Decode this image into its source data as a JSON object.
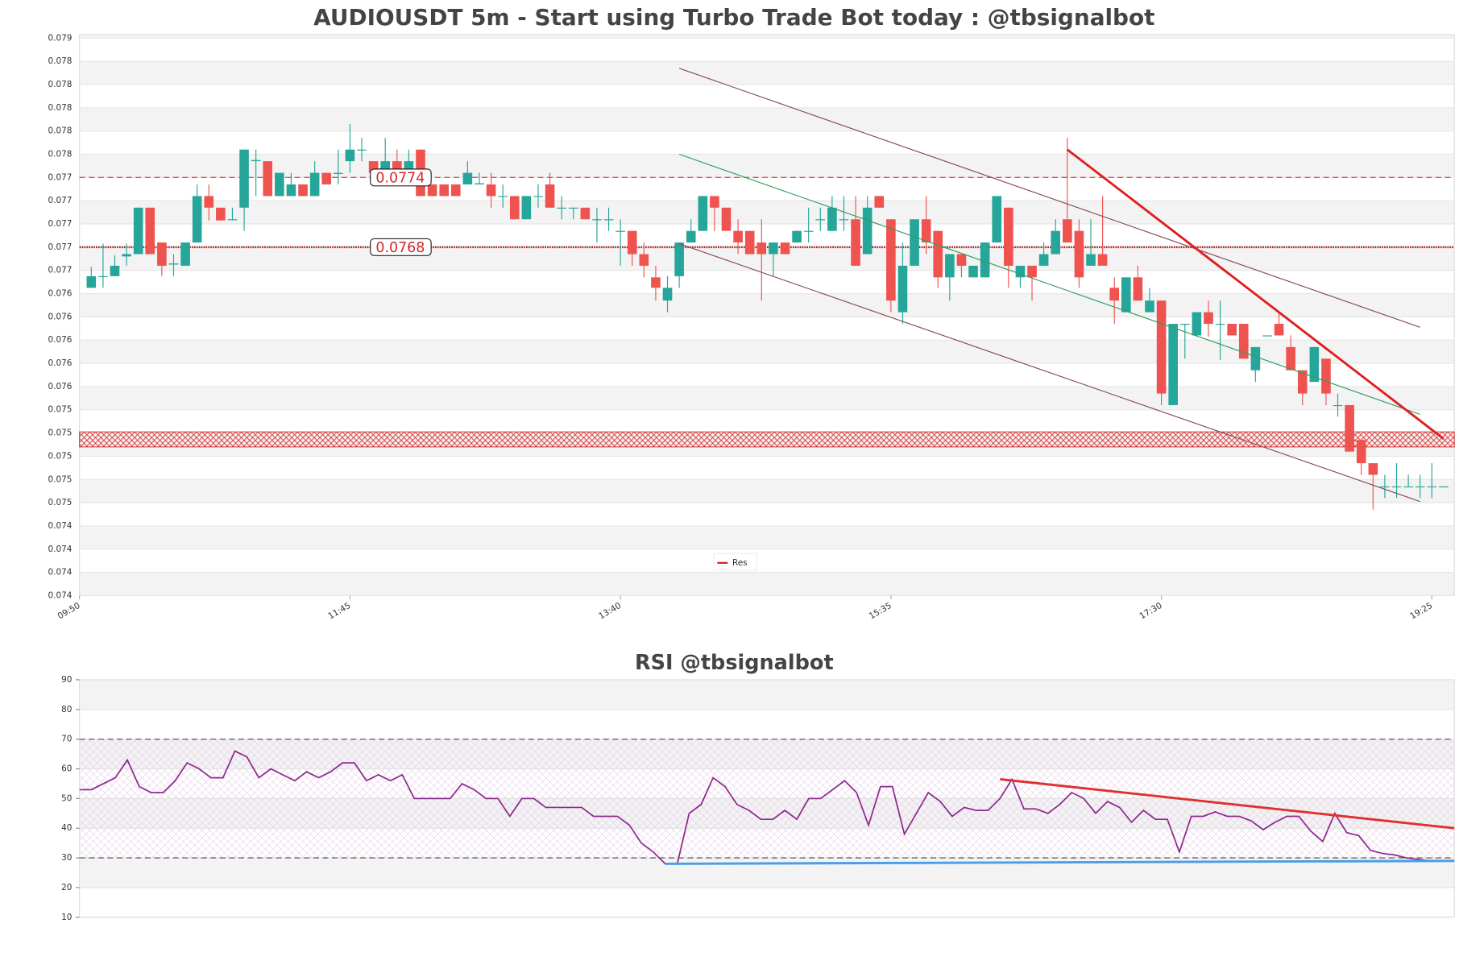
{
  "chart_data": [
    {
      "type": "candlestick",
      "title": "AUDIOUSDT 5m - Start using Turbo Trade Bot today : @tbsignalbot",
      "categories": [
        "09:50",
        null,
        null,
        null,
        null,
        null,
        null,
        null,
        null,
        null,
        null,
        null,
        null,
        null,
        null,
        null,
        null,
        null,
        null,
        null,
        null,
        null,
        null,
        "11:45",
        null,
        null,
        null,
        null,
        null,
        null,
        null,
        null,
        null,
        null,
        null,
        null,
        null,
        null,
        null,
        null,
        null,
        null,
        null,
        null,
        null,
        null,
        "13:40",
        null,
        null,
        null,
        null,
        null,
        null,
        null,
        null,
        null,
        null,
        null,
        null,
        null,
        null,
        null,
        null,
        null,
        null,
        null,
        null,
        null,
        null,
        "15:35",
        null,
        null,
        null,
        null,
        null,
        null,
        null,
        null,
        null,
        null,
        null,
        null,
        null,
        null,
        null,
        null,
        null,
        null,
        null,
        null,
        null,
        null,
        "17:30",
        null,
        null,
        null,
        null,
        null,
        null,
        null,
        null,
        null,
        null,
        null,
        null,
        null,
        null,
        null,
        null,
        null,
        null,
        null,
        null,
        null,
        null,
        "19:25"
      ],
      "open": [
        0.07645,
        0.07655,
        0.07655,
        0.07672,
        0.07674,
        0.07714,
        0.07684,
        0.07665,
        0.07664,
        0.07684,
        0.07724,
        0.07714,
        0.07704,
        0.07714,
        0.07754,
        0.07754,
        0.07724,
        0.07724,
        0.07734,
        0.07724,
        0.07744,
        0.07743,
        0.07754,
        0.07764,
        0.07754,
        0.07744,
        0.07754,
        0.07744,
        0.07764,
        0.07734,
        0.07734,
        0.07734,
        0.07734,
        0.07734,
        0.07734,
        0.07724,
        0.07724,
        0.07704,
        0.07724,
        0.07734,
        0.07714,
        0.07714,
        0.07714,
        0.07704,
        0.07704,
        0.07694,
        0.07694,
        0.07674,
        0.07654,
        0.07634,
        0.07655,
        0.07684,
        0.07694,
        0.07724,
        0.07714,
        0.07694,
        0.07694,
        0.07684,
        0.07674,
        0.07684,
        0.07684,
        0.07694,
        0.07704,
        0.07694,
        0.07704,
        0.07704,
        0.07674,
        0.07724,
        0.07704,
        0.07624,
        0.07664,
        0.07704,
        0.07694,
        0.07654,
        0.07674,
        0.07654,
        0.07654,
        0.07684,
        0.07714,
        0.07654,
        0.07664,
        0.07664,
        0.07674,
        0.07704,
        0.07694,
        0.07664,
        0.07674,
        0.07645,
        0.07624,
        0.07654,
        0.07624,
        0.07634,
        0.07544,
        0.07614,
        0.07604,
        0.07624,
        0.07614,
        0.07614,
        0.07614,
        0.07574,
        0.07604,
        0.07614,
        0.07594,
        0.07574,
        0.07564,
        0.07584,
        0.07544,
        0.07544,
        0.07514,
        0.07494,
        0.07474,
        0.07474,
        0.07474,
        0.07474,
        0.07474,
        0.07474
      ],
      "high": [
        0.07663,
        0.07683,
        0.07673,
        0.07683,
        0.07714,
        0.07714,
        0.07684,
        0.07674,
        0.07684,
        0.07734,
        0.07734,
        0.07714,
        0.07714,
        0.07764,
        0.07764,
        0.07754,
        0.07744,
        0.07744,
        0.07734,
        0.07754,
        0.07744,
        0.07764,
        0.07786,
        0.07774,
        0.07754,
        0.07774,
        0.07764,
        0.07764,
        0.07764,
        0.07734,
        0.07734,
        0.07734,
        0.07754,
        0.07744,
        0.07744,
        0.07734,
        0.07724,
        0.07724,
        0.07734,
        0.07744,
        0.07724,
        0.07714,
        0.07714,
        0.07714,
        0.07714,
        0.07704,
        0.07694,
        0.07684,
        0.07664,
        0.07655,
        0.07684,
        0.07704,
        0.07724,
        0.07724,
        0.07714,
        0.07704,
        0.07694,
        0.07704,
        0.07684,
        0.07684,
        0.07694,
        0.07714,
        0.07714,
        0.07724,
        0.07724,
        0.07724,
        0.07724,
        0.07724,
        0.07704,
        0.07684,
        0.07704,
        0.07724,
        0.07694,
        0.07674,
        0.07674,
        0.07664,
        0.07684,
        0.07724,
        0.07714,
        0.07664,
        0.07664,
        0.07684,
        0.07704,
        0.07774,
        0.07704,
        0.07704,
        0.07724,
        0.07654,
        0.07654,
        0.07664,
        0.07645,
        0.07634,
        0.07614,
        0.07614,
        0.07624,
        0.07634,
        0.07634,
        0.07614,
        0.07614,
        0.07594,
        0.07604,
        0.07624,
        0.07604,
        0.07574,
        0.07594,
        0.07584,
        0.07554,
        0.07544,
        0.07514,
        0.07494,
        0.07484,
        0.07494,
        0.07484,
        0.07484,
        0.07494,
        0.07474
      ],
      "low": [
        0.07645,
        0.07645,
        0.07655,
        0.07664,
        0.07674,
        0.07674,
        0.07655,
        0.07655,
        0.07664,
        0.07684,
        0.07703,
        0.07703,
        0.07703,
        0.07694,
        0.07724,
        0.07724,
        0.07724,
        0.07724,
        0.07724,
        0.07724,
        0.07734,
        0.07734,
        0.07744,
        0.07754,
        0.07744,
        0.07734,
        0.07744,
        0.07744,
        0.07724,
        0.07724,
        0.07724,
        0.07724,
        0.07734,
        0.07734,
        0.07714,
        0.07714,
        0.07704,
        0.07704,
        0.07714,
        0.07714,
        0.07704,
        0.07704,
        0.07704,
        0.07684,
        0.07694,
        0.07664,
        0.07664,
        0.07654,
        0.07634,
        0.07624,
        0.07645,
        0.07684,
        0.07694,
        0.07694,
        0.07694,
        0.07674,
        0.07674,
        0.07634,
        0.07655,
        0.07674,
        0.07684,
        0.07684,
        0.07694,
        0.07694,
        0.07694,
        0.07664,
        0.07674,
        0.07714,
        0.07624,
        0.07614,
        0.07664,
        0.07674,
        0.07645,
        0.07634,
        0.07654,
        0.07654,
        0.07654,
        0.07684,
        0.07645,
        0.07645,
        0.07634,
        0.07664,
        0.07674,
        0.07684,
        0.07645,
        0.07664,
        0.07664,
        0.07614,
        0.07624,
        0.07634,
        0.07624,
        0.07544,
        0.07544,
        0.07584,
        0.07603,
        0.07603,
        0.07583,
        0.07604,
        0.07584,
        0.07564,
        0.07604,
        0.07604,
        0.07574,
        0.07544,
        0.07564,
        0.07544,
        0.07534,
        0.07504,
        0.07484,
        0.07454,
        0.07464,
        0.07464,
        0.07474,
        0.07464,
        0.07464,
        0.07474
      ],
      "close": [
        0.07655,
        0.07655,
        0.07664,
        0.07674,
        0.07714,
        0.07674,
        0.07664,
        0.07666,
        0.07684,
        0.07724,
        0.07714,
        0.07703,
        0.07704,
        0.07764,
        0.07755,
        0.07724,
        0.07744,
        0.07734,
        0.07724,
        0.07744,
        0.07734,
        0.07744,
        0.07764,
        0.07764,
        0.07744,
        0.07754,
        0.07744,
        0.07754,
        0.07724,
        0.07724,
        0.07724,
        0.07724,
        0.07744,
        0.07735,
        0.07724,
        0.07724,
        0.07704,
        0.07724,
        0.07724,
        0.07714,
        0.07714,
        0.07714,
        0.07704,
        0.07704,
        0.07704,
        0.07694,
        0.07674,
        0.07664,
        0.07645,
        0.07645,
        0.07684,
        0.07694,
        0.07724,
        0.07714,
        0.07694,
        0.07684,
        0.07674,
        0.07674,
        0.07684,
        0.07674,
        0.07694,
        0.07694,
        0.07704,
        0.07714,
        0.07704,
        0.07664,
        0.07714,
        0.07714,
        0.07634,
        0.07664,
        0.07704,
        0.07684,
        0.07654,
        0.07674,
        0.07664,
        0.07664,
        0.07684,
        0.07724,
        0.07664,
        0.07664,
        0.07654,
        0.07674,
        0.07694,
        0.07684,
        0.07654,
        0.07674,
        0.07664,
        0.07634,
        0.07654,
        0.07634,
        0.07634,
        0.07554,
        0.07614,
        0.07614,
        0.07624,
        0.07614,
        0.07614,
        0.07604,
        0.07584,
        0.07594,
        0.07604,
        0.07604,
        0.07574,
        0.07554,
        0.07594,
        0.07554,
        0.07544,
        0.07504,
        0.07494,
        0.07484,
        0.07474,
        0.07474,
        0.07474,
        0.07474,
        0.07474,
        0.07474
      ],
      "up_color": "#26a69a",
      "down_color": "#ef5350",
      "ylim": [
        0.0738,
        0.07863
      ],
      "yticks": [
        {
          "value": 0.0738,
          "label": "0.074"
        },
        {
          "value": 0.074,
          "label": "0.074"
        },
        {
          "value": 0.0742,
          "label": "0.074"
        },
        {
          "value": 0.0744,
          "label": "0.074"
        },
        {
          "value": 0.0746,
          "label": "0.075"
        },
        {
          "value": 0.0748,
          "label": "0.075"
        },
        {
          "value": 0.075,
          "label": "0.075"
        },
        {
          "value": 0.0752,
          "label": "0.075"
        },
        {
          "value": 0.0754,
          "label": "0.075"
        },
        {
          "value": 0.0756,
          "label": "0.076"
        },
        {
          "value": 0.0758,
          "label": "0.076"
        },
        {
          "value": 0.076,
          "label": "0.076"
        },
        {
          "value": 0.0762,
          "label": "0.076"
        },
        {
          "value": 0.0764,
          "label": "0.076"
        },
        {
          "value": 0.0766,
          "label": "0.077"
        },
        {
          "value": 0.0768,
          "label": "0.077"
        },
        {
          "value": 0.077,
          "label": "0.077"
        },
        {
          "value": 0.0772,
          "label": "0.077"
        },
        {
          "value": 0.0774,
          "label": "0.077"
        },
        {
          "value": 0.0776,
          "label": "0.078"
        },
        {
          "value": 0.0778,
          "label": "0.078"
        },
        {
          "value": 0.078,
          "label": "0.078"
        },
        {
          "value": 0.0782,
          "label": "0.078"
        },
        {
          "value": 0.0784,
          "label": "0.078"
        },
        {
          "value": 0.0786,
          "label": "0.079"
        }
      ],
      "grid": true,
      "hlines": [
        {
          "value": 0.0774,
          "color": "#d9534f",
          "style": "dashed"
        },
        {
          "value": 0.0768,
          "color": "#b22222",
          "style": "dotted"
        }
      ],
      "zones": [
        {
          "from": 0.07508,
          "to": 0.07521,
          "color": "#d62728"
        }
      ],
      "lines": [
        {
          "points": [
            [
              50,
              0.07834
            ],
            [
              113,
              0.07611
            ]
          ],
          "color": "#8b4a5a"
        },
        {
          "points": [
            [
              50,
              0.07683
            ],
            [
              113,
              0.07461
            ]
          ],
          "color": "#8b4a5a"
        },
        {
          "points": [
            [
              50,
              0.0776
            ],
            [
              113,
              0.07536
            ]
          ],
          "color": "#2e9e5e"
        },
        {
          "points": [
            [
              83,
              0.07764
            ],
            [
              115,
              0.07515
            ]
          ],
          "color": "#e02020",
          "width": 2.5
        }
      ],
      "legend": {
        "position": "lower center",
        "items": [
          {
            "name": "Res",
            "color": "#d62728"
          }
        ]
      }
    },
    {
      "type": "line",
      "title": "RSI @tbsignalbot",
      "values": [
        53,
        53,
        55,
        57,
        63,
        54,
        52,
        52,
        56,
        62,
        60,
        57,
        57,
        66,
        64,
        57,
        60,
        58,
        56,
        59,
        57,
        59,
        62,
        62,
        56,
        58,
        56,
        58,
        50,
        50,
        50,
        50,
        55,
        53,
        50,
        50,
        44,
        50,
        50,
        47,
        47,
        47,
        47,
        44,
        44,
        44,
        41,
        35,
        32,
        28,
        28,
        45,
        48,
        57,
        54,
        48,
        46,
        43,
        43,
        46,
        43,
        50,
        50,
        53,
        56,
        52,
        41,
        54,
        54,
        38,
        45,
        52,
        49,
        44,
        47,
        46,
        46,
        50,
        56.5,
        46.5,
        46.5,
        45,
        48,
        52,
        50,
        45,
        49,
        47,
        42,
        46,
        43,
        43,
        32,
        44,
        44,
        45.5,
        44,
        44,
        42.5,
        39.5,
        42,
        44,
        44,
        39,
        35.5,
        45,
        38.5,
        37.5,
        32.5,
        31.5,
        31,
        30,
        29.5,
        29,
        29,
        29
      ],
      "color": "#8e2a8e",
      "ylim": [
        10,
        90
      ],
      "yticks": [
        10,
        20,
        30,
        40,
        50,
        60,
        70,
        80,
        90
      ],
      "grid": true,
      "levels": [
        {
          "value": 70
        },
        {
          "value": 30
        }
      ],
      "lines": [
        {
          "points": [
            [
              77,
              56.5
            ],
            [
              115,
              40
            ]
          ],
          "color": "#e03030",
          "width": 2.5
        },
        {
          "points": [
            [
              49,
              28
            ],
            [
              115,
              29
            ]
          ],
          "color": "#4a9de8",
          "width": 2.5
        }
      ]
    }
  ]
}
